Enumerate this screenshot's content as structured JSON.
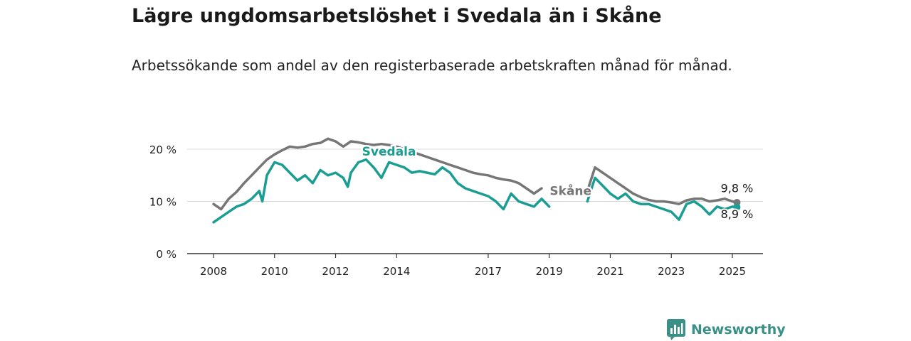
{
  "title": "Lägre ungdomsarbetslöshet i Svedala än i Skåne",
  "subtitle": "Arbetssökande som andel av den registerbaserade arbetskraften månad för månad.",
  "brand": {
    "name": "Newsworthy"
  },
  "colors": {
    "svedala": "#1a9e93",
    "skane": "#767676",
    "grid": "#d9d9d9",
    "axis": "#333333"
  },
  "chart_data": {
    "type": "line",
    "ylim": [
      0,
      22
    ],
    "xlim": [
      2007.6,
      2025.6
    ],
    "y_ticks": [
      {
        "value": 0,
        "label": "0 %"
      },
      {
        "value": 10,
        "label": "10 %"
      },
      {
        "value": 20,
        "label": "20 %"
      }
    ],
    "x_ticks": [
      {
        "value": 2008,
        "label": "2008"
      },
      {
        "value": 2010,
        "label": "2010"
      },
      {
        "value": 2012,
        "label": "2012"
      },
      {
        "value": 2014,
        "label": "2014"
      },
      {
        "value": 2017,
        "label": "2017"
      },
      {
        "value": 2019,
        "label": "2019"
      },
      {
        "value": 2021,
        "label": "2021"
      },
      {
        "value": 2023,
        "label": "2023"
      },
      {
        "value": 2025,
        "label": "2025"
      }
    ],
    "grid": true,
    "series": [
      {
        "name": "Skåne",
        "color": "#767676",
        "points": [
          [
            2008.0,
            9.5
          ],
          [
            2008.25,
            8.5
          ],
          [
            2008.5,
            10.5
          ],
          [
            2008.75,
            11.8
          ],
          [
            2009.0,
            13.5
          ],
          [
            2009.25,
            15.0
          ],
          [
            2009.5,
            16.5
          ],
          [
            2009.75,
            18.0
          ],
          [
            2010.0,
            19.0
          ],
          [
            2010.25,
            19.8
          ],
          [
            2010.5,
            20.5
          ],
          [
            2010.75,
            20.3
          ],
          [
            2011.0,
            20.5
          ],
          [
            2011.25,
            21.0
          ],
          [
            2011.5,
            21.2
          ],
          [
            2011.75,
            22.0
          ],
          [
            2012.0,
            21.5
          ],
          [
            2012.25,
            20.5
          ],
          [
            2012.5,
            21.5
          ],
          [
            2012.75,
            21.3
          ],
          [
            2013.0,
            21.0
          ],
          [
            2013.25,
            20.8
          ],
          [
            2013.5,
            21.0
          ],
          [
            2013.75,
            20.8
          ],
          [
            2014.0,
            20.5
          ],
          [
            2014.25,
            20.0
          ],
          [
            2014.5,
            19.5
          ],
          [
            2014.75,
            19.0
          ],
          [
            2015.0,
            18.5
          ],
          [
            2015.25,
            18.0
          ],
          [
            2015.5,
            17.5
          ],
          [
            2015.75,
            17.0
          ],
          [
            2016.0,
            16.5
          ],
          [
            2016.25,
            16.0
          ],
          [
            2016.5,
            15.5
          ],
          [
            2016.75,
            15.2
          ],
          [
            2017.0,
            15.0
          ],
          [
            2017.25,
            14.5
          ],
          [
            2017.5,
            14.2
          ],
          [
            2017.75,
            14.0
          ],
          [
            2018.0,
            13.5
          ],
          [
            2018.25,
            12.5
          ],
          [
            2018.5,
            11.5
          ],
          [
            2018.75,
            12.5
          ],
          null,
          [
            2020.25,
            12.0
          ],
          [
            2020.5,
            16.5
          ],
          [
            2020.75,
            15.5
          ],
          [
            2021.0,
            14.5
          ],
          [
            2021.25,
            13.5
          ],
          [
            2021.5,
            12.5
          ],
          [
            2021.75,
            11.5
          ],
          [
            2022.0,
            10.8
          ],
          [
            2022.25,
            10.3
          ],
          [
            2022.5,
            10.0
          ],
          [
            2022.75,
            10.0
          ],
          [
            2023.0,
            9.8
          ],
          [
            2023.25,
            9.5
          ],
          [
            2023.5,
            10.2
          ],
          [
            2023.75,
            10.5
          ],
          [
            2024.0,
            10.5
          ],
          [
            2024.25,
            10.0
          ],
          [
            2024.5,
            10.2
          ],
          [
            2024.75,
            10.5
          ],
          [
            2025.0,
            10.0
          ],
          [
            2025.15,
            9.8
          ]
        ]
      },
      {
        "name": "Svedala",
        "color": "#1a9e93",
        "points": [
          [
            2008.0,
            6.0
          ],
          [
            2008.25,
            7.0
          ],
          [
            2008.5,
            8.0
          ],
          [
            2008.75,
            9.0
          ],
          [
            2009.0,
            9.5
          ],
          [
            2009.25,
            10.5
          ],
          [
            2009.5,
            12.0
          ],
          [
            2009.6,
            10.0
          ],
          [
            2009.75,
            15.0
          ],
          [
            2010.0,
            17.5
          ],
          [
            2010.25,
            17.0
          ],
          [
            2010.5,
            15.5
          ],
          [
            2010.75,
            14.0
          ],
          [
            2011.0,
            15.0
          ],
          [
            2011.25,
            13.5
          ],
          [
            2011.5,
            16.0
          ],
          [
            2011.75,
            15.0
          ],
          [
            2012.0,
            15.5
          ],
          [
            2012.25,
            14.5
          ],
          [
            2012.4,
            12.8
          ],
          [
            2012.5,
            15.5
          ],
          [
            2012.75,
            17.5
          ],
          [
            2013.0,
            18.0
          ],
          [
            2013.25,
            16.5
          ],
          [
            2013.5,
            14.5
          ],
          [
            2013.75,
            17.5
          ],
          [
            2014.0,
            17.0
          ],
          [
            2014.25,
            16.5
          ],
          [
            2014.5,
            15.5
          ],
          [
            2014.75,
            15.8
          ],
          [
            2015.0,
            15.5
          ],
          [
            2015.25,
            15.2
          ],
          [
            2015.5,
            16.5
          ],
          [
            2015.75,
            15.5
          ],
          [
            2016.0,
            13.5
          ],
          [
            2016.25,
            12.5
          ],
          [
            2016.5,
            12.0
          ],
          [
            2016.75,
            11.5
          ],
          [
            2017.0,
            11.0
          ],
          [
            2017.25,
            10.0
          ],
          [
            2017.5,
            8.5
          ],
          [
            2017.75,
            11.5
          ],
          [
            2018.0,
            10.0
          ],
          [
            2018.25,
            9.5
          ],
          [
            2018.5,
            9.0
          ],
          [
            2018.75,
            10.5
          ],
          [
            2019.0,
            9.0
          ],
          null,
          [
            2020.25,
            10.0
          ],
          [
            2020.5,
            14.5
          ],
          [
            2020.75,
            13.0
          ],
          [
            2021.0,
            11.5
          ],
          [
            2021.25,
            10.5
          ],
          [
            2021.5,
            11.5
          ],
          [
            2021.75,
            10.0
          ],
          [
            2022.0,
            9.5
          ],
          [
            2022.25,
            9.5
          ],
          [
            2022.5,
            9.0
          ],
          [
            2022.75,
            8.5
          ],
          [
            2023.0,
            8.0
          ],
          [
            2023.25,
            6.5
          ],
          [
            2023.5,
            9.5
          ],
          [
            2023.75,
            10.0
          ],
          [
            2024.0,
            9.0
          ],
          [
            2024.25,
            7.5
          ],
          [
            2024.5,
            9.0
          ],
          [
            2024.75,
            8.5
          ],
          [
            2025.0,
            9.0
          ],
          [
            2025.15,
            8.9
          ]
        ]
      }
    ],
    "labels": [
      {
        "series": "Svedala",
        "text": "Svedala",
        "x": 2013.75,
        "y": 18.8,
        "color": "#1a9e93",
        "bold": true,
        "anchor": "middle"
      },
      {
        "series": "Skåne",
        "text": "Skåne",
        "x": 2019.7,
        "y": 11.2,
        "color": "#767676",
        "bold": true,
        "anchor": "middle"
      }
    ],
    "end_labels": [
      {
        "series": "Skåne",
        "text": "9,8 %",
        "x": 2025.15,
        "y": 11.8,
        "anchor": "middle"
      },
      {
        "series": "Svedala",
        "text": "8,9 %",
        "x": 2025.15,
        "y": 6.8,
        "anchor": "middle"
      }
    ]
  }
}
